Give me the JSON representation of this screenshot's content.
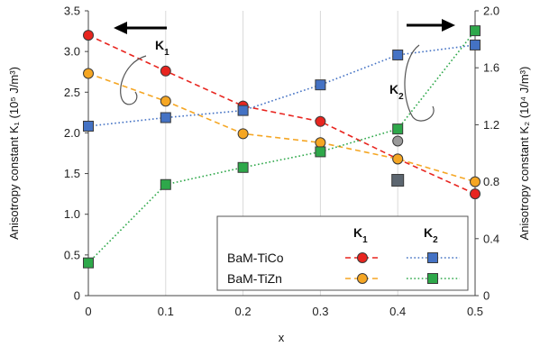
{
  "chart_data": {
    "type": "line",
    "xlabel": "x",
    "ylabel_left": "Anisotropy constant K₁ (10⁵ J/m³)",
    "ylabel_right": "Anisotropy constant K₂ (10⁴ J/m³)",
    "xlim": [
      0,
      0.5
    ],
    "ylim_left": [
      0,
      3.5
    ],
    "ylim_right": [
      0,
      2.0
    ],
    "x": [
      0,
      0.1,
      0.2,
      0.3,
      0.4,
      0.5
    ],
    "x_ticks": [
      "0",
      "0.1",
      "0.2",
      "0.3",
      "0.4",
      "0.5"
    ],
    "left_ticks": [
      "0",
      "0.5",
      "1.0",
      "1.5",
      "2.0",
      "2.5",
      "3.0",
      "3.5"
    ],
    "right_ticks": [
      "0",
      "0.4",
      "0.8",
      "1.2",
      "1.6",
      "2.0"
    ],
    "grid": "vertical",
    "series": [
      {
        "name": "BaM-TiCo",
        "constant": "K1",
        "axis": "left",
        "marker": "circle",
        "color": "#e8251f",
        "dash": "dashed",
        "values": [
          3.2,
          2.76,
          2.33,
          2.14,
          1.68,
          1.25
        ]
      },
      {
        "name": "BaM-TiZn",
        "constant": "K1",
        "axis": "left",
        "marker": "circle",
        "color": "#f5a623",
        "dash": "dashed",
        "values": [
          2.73,
          2.39,
          1.99,
          1.88,
          1.68,
          1.4
        ]
      },
      {
        "name": "BaM-TiCo",
        "constant": "K2",
        "axis": "right",
        "marker": "square",
        "color": "#4472c4",
        "dash": "dotted",
        "values": [
          1.19,
          1.25,
          1.3,
          1.48,
          1.69,
          1.76
        ]
      },
      {
        "name": "BaM-TiZn",
        "constant": "K2",
        "axis": "right",
        "marker": "square",
        "color": "#2ea84a",
        "dash": "dotted",
        "values": [
          0.23,
          0.78,
          0.9,
          1.01,
          1.17,
          1.86
        ]
      }
    ],
    "extra_points": [
      {
        "x": 0.4,
        "axis": "left",
        "value": 1.9,
        "marker": "circle",
        "color": "#9a9a9a"
      },
      {
        "x": 0.4,
        "axis": "right",
        "value": 0.81,
        "marker": "square",
        "color": "#5c6670"
      }
    ],
    "legend": {
      "placement": "bottom-right",
      "header_k1": "K1",
      "header_k2": "K2",
      "rows": [
        "BaM-TiCo",
        "BaM-TiZn"
      ]
    },
    "annotations": [
      "K1",
      "K2"
    ]
  }
}
